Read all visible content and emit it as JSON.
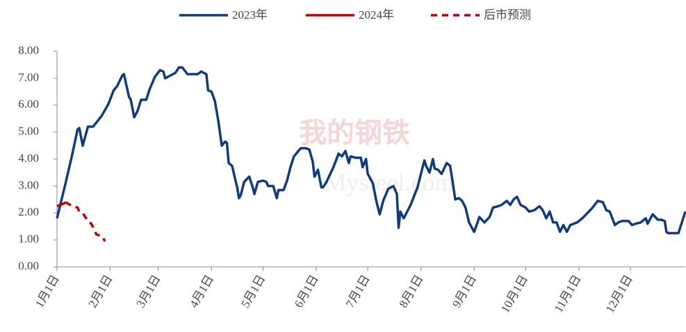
{
  "chart_data": {
    "type": "line",
    "watermark": [
      "我的钢铁",
      "Mysteel.com"
    ],
    "xlim": [
      0,
      366
    ],
    "xticks": [
      {
        "value": 0,
        "label": "1月1日"
      },
      {
        "value": 31,
        "label": "2月1日"
      },
      {
        "value": 59,
        "label": "3月1日"
      },
      {
        "value": 90,
        "label": "4月1日"
      },
      {
        "value": 120,
        "label": "5月1日"
      },
      {
        "value": 151,
        "label": "6月1日"
      },
      {
        "value": 181,
        "label": "7月1日"
      },
      {
        "value": 212,
        "label": "8月1日"
      },
      {
        "value": 243,
        "label": "9月1日"
      },
      {
        "value": 273,
        "label": "10月1日"
      },
      {
        "value": 304,
        "label": "11月1日"
      },
      {
        "value": 334,
        "label": "12月1日"
      }
    ],
    "ylim": [
      0,
      8
    ],
    "yticks": [
      {
        "value": 0,
        "label": "0.00"
      },
      {
        "value": 1,
        "label": "1.00"
      },
      {
        "value": 2,
        "label": "2.00"
      },
      {
        "value": 3,
        "label": "3.00"
      },
      {
        "value": 4,
        "label": "4.00"
      },
      {
        "value": 5,
        "label": "5.00"
      },
      {
        "value": 6,
        "label": "6.00"
      },
      {
        "value": 7,
        "label": "7.00"
      },
      {
        "value": 8,
        "label": "8.00"
      }
    ],
    "legend": "top",
    "series": [
      {
        "name": "2023年",
        "color": "#0e3a82",
        "dash": false,
        "x": [
          0,
          5,
          9,
          12,
          13,
          15,
          18,
          21,
          26,
          30,
          33,
          35,
          38,
          39,
          42,
          43,
          45,
          47,
          49,
          52,
          54,
          57,
          60,
          62,
          63,
          66,
          69,
          71,
          73,
          76,
          82,
          84,
          87,
          88,
          90,
          92,
          94,
          96,
          98,
          99,
          100,
          102,
          104,
          105,
          106,
          107,
          109,
          112,
          114,
          115,
          117,
          120,
          122,
          123,
          126,
          128,
          129,
          132,
          134,
          136,
          138,
          140,
          142,
          145,
          147,
          149,
          150,
          152,
          154,
          155,
          157,
          161,
          164,
          166,
          168,
          170,
          171,
          174,
          177,
          178,
          180,
          181,
          184,
          186,
          188,
          190,
          193,
          196,
          198,
          199,
          200,
          202,
          206,
          210,
          212,
          214,
          215,
          217,
          219,
          220,
          222,
          224,
          227,
          229,
          230,
          232,
          234,
          236,
          238,
          240,
          243,
          245,
          246,
          249,
          252,
          254,
          257,
          259,
          262,
          264,
          266,
          268,
          270,
          273,
          275,
          278,
          281,
          283,
          285,
          287,
          289,
          291,
          293,
          295,
          297,
          299,
          303,
          306,
          309,
          312,
          315,
          318,
          320,
          322,
          325,
          327,
          329,
          333,
          335,
          337,
          340,
          343,
          344,
          347,
          350,
          352,
          354,
          355,
          356,
          362,
          364,
          366
        ],
        "values": [
          1.8,
          3.1,
          4.2,
          5.1,
          5.15,
          4.5,
          5.2,
          5.2,
          5.6,
          6.05,
          6.55,
          6.7,
          7.1,
          7.15,
          6.3,
          6.2,
          5.55,
          5.8,
          6.2,
          6.2,
          6.6,
          7.05,
          7.3,
          7.25,
          7.0,
          7.1,
          7.2,
          7.4,
          7.4,
          7.15,
          7.15,
          7.25,
          7.15,
          6.55,
          6.5,
          6.15,
          5.4,
          4.5,
          4.65,
          4.6,
          3.85,
          3.75,
          3.2,
          2.95,
          2.55,
          2.65,
          3.15,
          3.35,
          2.95,
          2.7,
          3.15,
          3.2,
          3.15,
          3.0,
          3.0,
          2.55,
          2.85,
          2.85,
          3.2,
          3.7,
          4.1,
          4.25,
          4.4,
          4.4,
          4.35,
          3.9,
          3.35,
          3.6,
          2.95,
          2.95,
          3.15,
          3.7,
          4.2,
          4.1,
          4.3,
          3.85,
          4.1,
          4.05,
          4.05,
          3.7,
          4.0,
          3.45,
          3.1,
          2.45,
          1.95,
          2.45,
          2.9,
          3.0,
          2.7,
          1.45,
          2.05,
          1.8,
          2.3,
          2.95,
          3.45,
          3.95,
          3.75,
          3.5,
          4.0,
          3.65,
          3.6,
          3.45,
          3.85,
          3.75,
          3.35,
          2.5,
          2.55,
          2.45,
          2.2,
          1.65,
          1.3,
          1.65,
          1.85,
          1.65,
          1.85,
          2.2,
          2.25,
          2.3,
          2.45,
          2.3,
          2.5,
          2.6,
          2.3,
          2.2,
          2.05,
          2.1,
          2.25,
          2.1,
          1.8,
          2.05,
          1.65,
          1.65,
          1.3,
          1.55,
          1.3,
          1.55,
          1.65,
          1.8,
          2.0,
          2.2,
          2.45,
          2.4,
          2.1,
          2.05,
          1.55,
          1.65,
          1.7,
          1.7,
          1.55,
          1.6,
          1.65,
          1.8,
          1.6,
          1.95,
          1.75,
          1.75,
          1.7,
          1.3,
          1.25,
          1.25,
          1.65,
          2.05
        ]
      },
      {
        "name": "2024年",
        "color": "#c00000",
        "dash": false,
        "x": [
          0,
          2,
          4,
          5
        ],
        "values": [
          2.25,
          2.3,
          2.35,
          2.4
        ]
      },
      {
        "name": "后市预测",
        "color": "#c00000",
        "dash": true,
        "x": [
          5,
          9,
          12,
          13,
          15,
          18,
          20,
          23,
          26,
          28
        ],
        "values": [
          2.4,
          2.25,
          2.2,
          2.05,
          2.0,
          1.7,
          1.6,
          1.2,
          1.15,
          0.95
        ]
      }
    ]
  }
}
